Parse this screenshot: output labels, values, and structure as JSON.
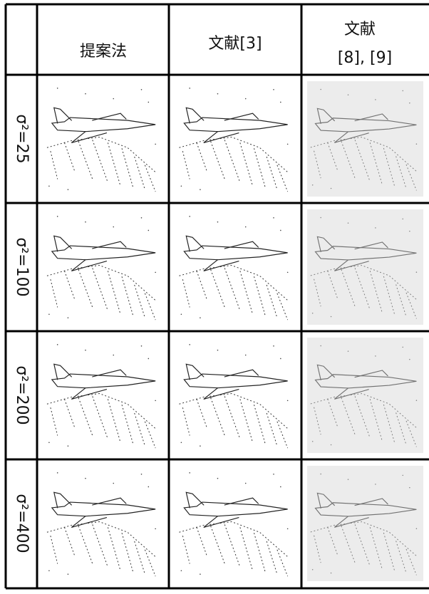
{
  "table": {
    "columns": [
      "提案法",
      "文献[3]",
      [
        "文献",
        "[8], [9]"
      ]
    ],
    "rows": [
      "σ²=25",
      "σ²=100",
      "σ²=200",
      "σ²=400"
    ]
  }
}
